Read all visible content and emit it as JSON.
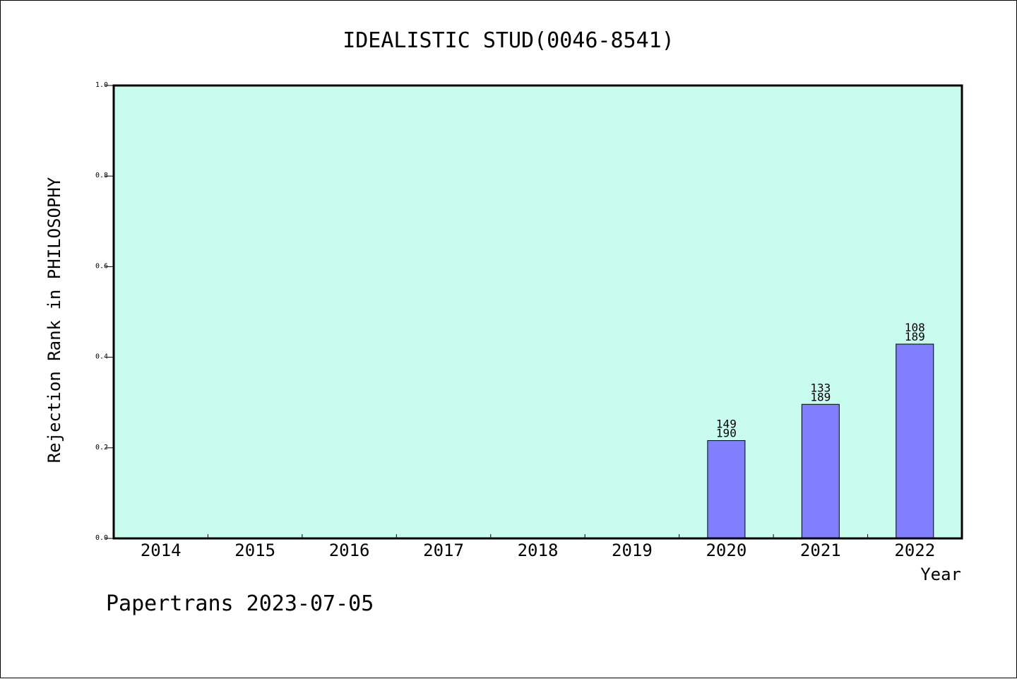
{
  "chart_data": {
    "type": "bar",
    "title": "IDEALISTIC STUD(0046-8541)",
    "xlabel": "Year",
    "ylabel": "Rejection Rank in PHILOSOPHY",
    "categories": [
      "2014",
      "2015",
      "2016",
      "2017",
      "2018",
      "2019",
      "2020",
      "2021",
      "2022"
    ],
    "values": [
      null,
      null,
      null,
      null,
      null,
      null,
      0.216,
      0.296,
      0.429
    ],
    "bar_labels": [
      null,
      null,
      null,
      null,
      null,
      null,
      {
        "top": "149",
        "bottom": "190"
      },
      {
        "top": "133",
        "bottom": "189"
      },
      {
        "top": "108",
        "bottom": "189"
      }
    ],
    "ylim": [
      0,
      1.0
    ],
    "yticks": [
      "0.0",
      "0.2",
      "0.4",
      "0.6",
      "0.8",
      "1.0"
    ],
    "grid": false,
    "colors": {
      "plot_background": "#c8fcee",
      "bar_fill": "#8080ff",
      "bar_stroke": "#000000",
      "axis": "#000000"
    }
  },
  "footer": {
    "text": "Papertrans 2023-07-05"
  }
}
